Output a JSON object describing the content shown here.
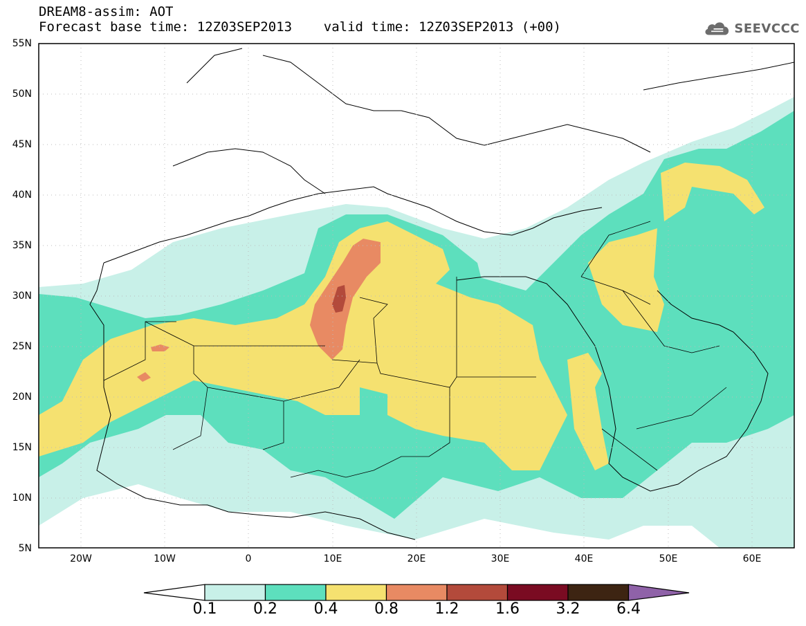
{
  "header": {
    "line1": "DREAM8-assim: AOT",
    "line2": "Forecast base time: 12Z03SEP2013    valid time: 12Z03SEP2013 (+00)"
  },
  "logo": {
    "text": "SEEVCCC",
    "icon": "cloud-icon"
  },
  "map": {
    "lat_range": [
      5,
      55
    ],
    "lon_range": [
      -25,
      65
    ],
    "lat_ticks": [
      "5N",
      "10N",
      "15N",
      "20N",
      "25N",
      "30N",
      "35N",
      "40N",
      "45N",
      "50N",
      "55N"
    ],
    "lon_ticks": [
      "20W",
      "10W",
      "0",
      "10E",
      "20E",
      "30E",
      "40E",
      "50E",
      "60E"
    ],
    "gridlines": "dotted"
  },
  "colorbar": {
    "labels": [
      "0.1",
      "0.2",
      "0.4",
      "0.8",
      "1.2",
      "1.6",
      "3.2",
      "6.4"
    ],
    "colors": [
      "#ffffff",
      "#c8f0e8",
      "#5ddfbd",
      "#f5e170",
      "#e88a63",
      "#b34a3b",
      "#7a0b22",
      "#3d2412",
      "#8f62a8"
    ]
  }
}
